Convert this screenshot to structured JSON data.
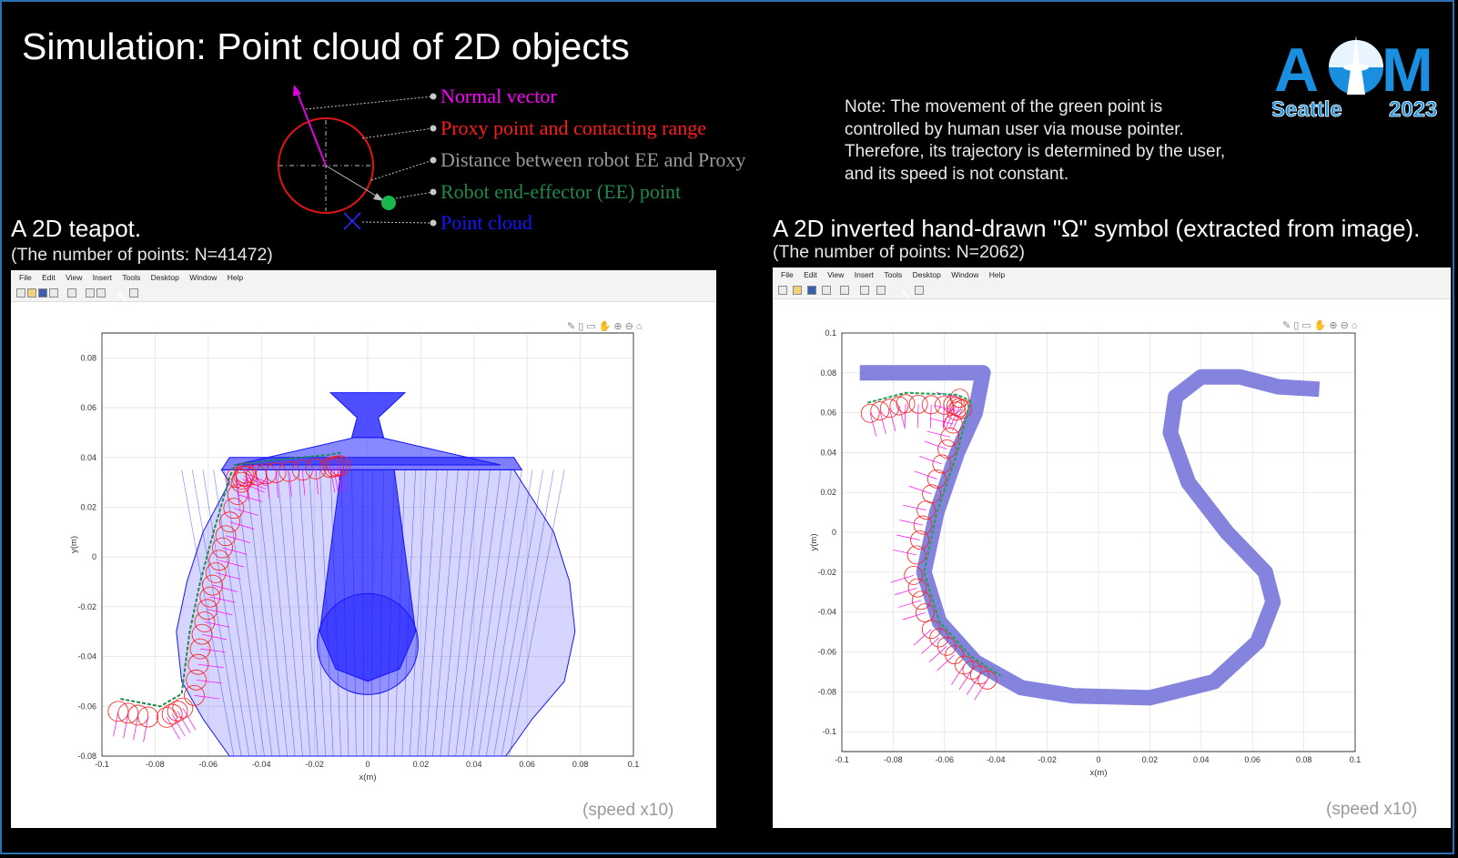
{
  "slide": {
    "title": "Simulation: Point cloud of 2D objects",
    "note": [
      "Note: The movement of the green point is",
      "controlled by human user via mouse pointer.",
      "Therefore, its trajectory is determined by the user,",
      "and its speed is not constant."
    ],
    "logo": {
      "left": "A",
      "right": "M",
      "city": "Seattle",
      "year": "2023"
    }
  },
  "legend": [
    {
      "label": "Normal vector",
      "color": "#ff00ff"
    },
    {
      "label": "Proxy point and contacting range",
      "color": "#ff1a1a"
    },
    {
      "label": "Distance between robot EE and Proxy",
      "color": "#9a9a9a"
    },
    {
      "label": "Robot end-effector (EE) point",
      "color": "#1f8a4c"
    },
    {
      "label": "Point cloud",
      "color": "#1414ff"
    }
  ],
  "panels": [
    {
      "heading": "A 2D teapot.",
      "subheading": "(The number of points: N=41472)",
      "speed": "(speed x10)",
      "menu": [
        "File",
        "Edit",
        "View",
        "Insert",
        "Tools",
        "Desktop",
        "Window",
        "Help"
      ],
      "axes": {
        "xlabel": "x(m)",
        "ylabel": "y(m)",
        "xticks": [
          "-0.1",
          "-0.08",
          "-0.06",
          "-0.04",
          "-0.02",
          "0",
          "0.02",
          "0.04",
          "0.06",
          "0.08",
          "0.1"
        ],
        "yticks": [
          "-0.08",
          "-0.06",
          "-0.04",
          "-0.02",
          "0",
          "0.02",
          "0.04",
          "0.06",
          "0.08"
        ],
        "xlim": [
          -0.1,
          0.1
        ],
        "ylim": [
          -0.08,
          0.09
        ],
        "grid": true
      },
      "chart_data": {
        "type": "scatter",
        "series": [
          {
            "name": "Point cloud",
            "color": "#1414ff"
          },
          {
            "name": "Robot end-effector (EE) point",
            "color": "#1f8a4c"
          },
          {
            "name": "Proxy point and contacting range",
            "color": "#ff1a1a"
          },
          {
            "name": "Normal vector",
            "color": "#ff00ff"
          }
        ]
      }
    },
    {
      "heading": "A 2D inverted hand-drawn \"Ω\" symbol (extracted from image).",
      "subheading": "(The number of points: N=2062)",
      "speed": "(speed x10)",
      "menu": [
        "File",
        "Edit",
        "View",
        "Insert",
        "Tools",
        "Desktop",
        "Window",
        "Help"
      ],
      "axes": {
        "xlabel": "x(m)",
        "ylabel": "y(m)",
        "xticks": [
          "-0.1",
          "-0.08",
          "-0.06",
          "-0.04",
          "-0.02",
          "0",
          "0.02",
          "0.04",
          "0.06",
          "0.08",
          "0.1"
        ],
        "yticks": [
          "0.1",
          "0.08",
          "0.06",
          "0.04",
          "0.02",
          "0",
          "-0.02",
          "-0.04",
          "-0.06",
          "-0.08",
          "-0.1"
        ],
        "xlim": [
          -0.1,
          0.1
        ],
        "ylim": [
          -0.11,
          0.1
        ],
        "grid": true
      },
      "chart_data": {
        "type": "scatter",
        "series": [
          {
            "name": "Point cloud",
            "color": "#6f6fd9"
          },
          {
            "name": "Robot end-effector (EE) point",
            "color": "#1fa04c"
          },
          {
            "name": "Proxy point and contacting range",
            "color": "#ff1a1a"
          },
          {
            "name": "Normal vector",
            "color": "#ff00ff"
          }
        ]
      }
    }
  ]
}
